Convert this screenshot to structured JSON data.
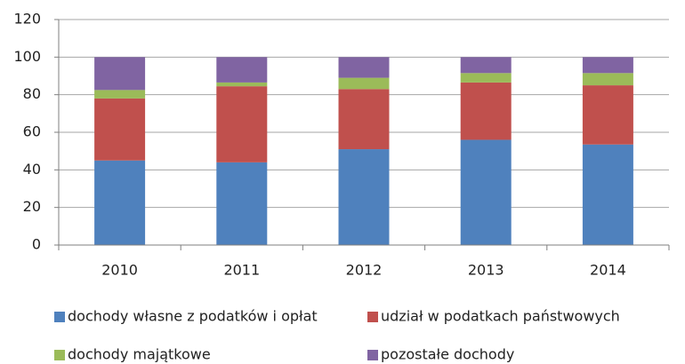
{
  "chart_data": {
    "type": "stacked_bar",
    "categories": [
      "2010",
      "2011",
      "2012",
      "2013",
      "2014"
    ],
    "series": [
      {
        "name": "dochody własne z podatków i opłat",
        "color": "#4f81bd",
        "values": [
          45,
          44,
          51,
          56,
          53.5
        ]
      },
      {
        "name": "udział w podatkach państwowych",
        "color": "#c0504d",
        "values": [
          33,
          40.5,
          32,
          30.5,
          31.5
        ]
      },
      {
        "name": "dochody majątkowe",
        "color": "#9bbb59",
        "values": [
          4.5,
          2,
          6,
          5,
          6.5
        ]
      },
      {
        "name": "pozostałe dochody",
        "color": "#8064a2",
        "values": [
          17.5,
          13.5,
          11,
          8.5,
          8.5
        ]
      }
    ],
    "ylim": [
      0,
      120
    ],
    "yticks": [
      0,
      20,
      40,
      60,
      80,
      100,
      120
    ],
    "grid": true
  }
}
